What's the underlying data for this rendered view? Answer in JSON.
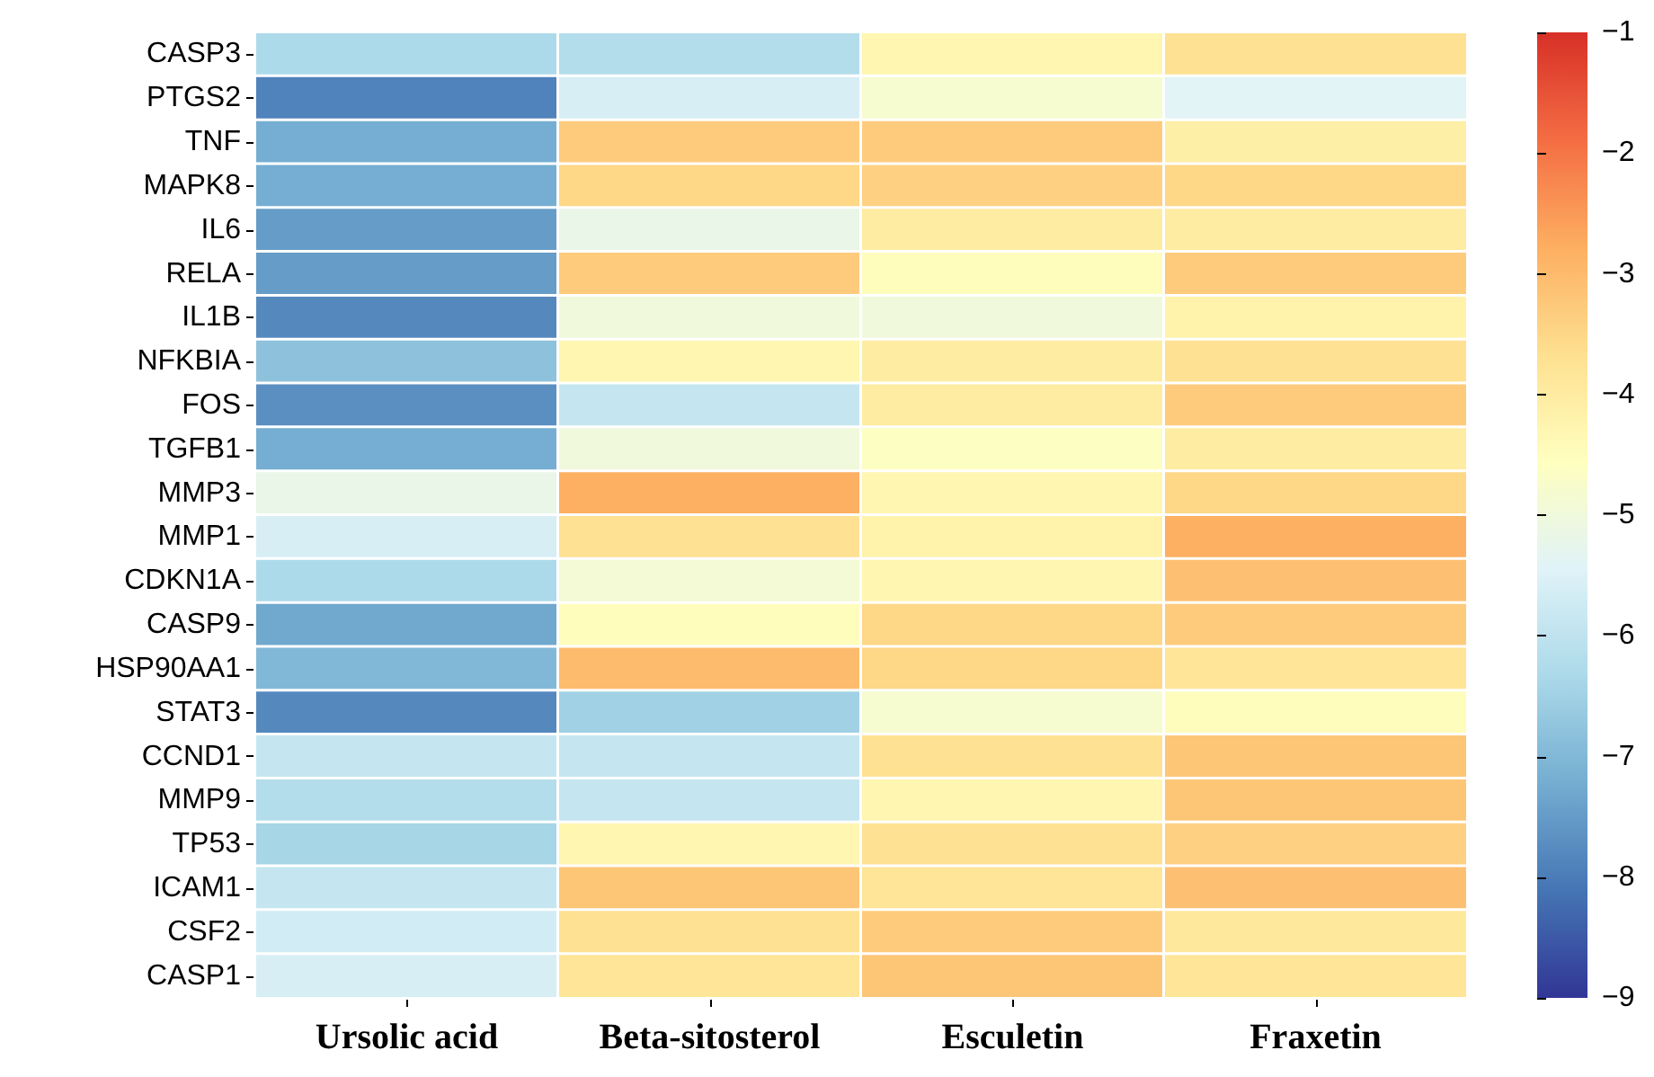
{
  "chart_data": {
    "type": "heatmap",
    "categories": [
      "Ursolic acid",
      "Beta-sitosterol",
      "Esculetin",
      "Fraxetin"
    ],
    "y_categories": [
      "CASP3",
      "PTGS2",
      "TNF",
      "MAPK8",
      "IL6",
      "RELA",
      "IL1B",
      "NFKBIA",
      "FOS",
      "TGFB1",
      "MMP3",
      "MMP1",
      "CDKN1A",
      "CASP9",
      "HSP90AA1",
      "STAT3",
      "CCND1",
      "MMP9",
      "TP53",
      "ICAM1",
      "CSF2",
      "CASP1"
    ],
    "cells": [
      [
        -6.3,
        -6.2,
        -4.3,
        -3.7
      ],
      [
        -7.9,
        -5.6,
        -4.8,
        -5.4
      ],
      [
        -7.2,
        -3.3,
        -3.3,
        -4.1
      ],
      [
        -7.2,
        -3.5,
        -3.4,
        -3.5
      ],
      [
        -7.5,
        -5.2,
        -4.0,
        -4.0
      ],
      [
        -7.5,
        -3.3,
        -4.5,
        -3.3
      ],
      [
        -7.8,
        -5.0,
        -5.0,
        -4.2
      ],
      [
        -6.8,
        -4.3,
        -4.0,
        -3.7
      ],
      [
        -7.7,
        -5.9,
        -4.0,
        -3.3
      ],
      [
        -7.2,
        -5.0,
        -4.6,
        -4.0
      ],
      [
        -5.2,
        -2.8,
        -4.3,
        -3.5
      ],
      [
        -5.6,
        -3.7,
        -4.2,
        -2.8
      ],
      [
        -6.3,
        -4.9,
        -4.3,
        -3.1
      ],
      [
        -7.3,
        -4.5,
        -3.5,
        -3.3
      ],
      [
        -7.0,
        -3.0,
        -3.5,
        -3.8
      ],
      [
        -7.8,
        -6.5,
        -4.8,
        -4.5
      ],
      [
        -5.9,
        -5.9,
        -3.7,
        -3.2
      ],
      [
        -6.2,
        -5.9,
        -4.3,
        -3.2
      ],
      [
        -6.4,
        -4.3,
        -3.7,
        -3.4
      ],
      [
        -5.9,
        -3.2,
        -3.8,
        -3.1
      ],
      [
        -5.7,
        -3.7,
        -3.3,
        -3.9
      ],
      [
        -5.6,
        -3.8,
        -3.2,
        -3.8
      ]
    ],
    "clim": [
      -9,
      -1
    ],
    "cticks": [
      -1,
      -2,
      -3,
      -4,
      -5,
      -6,
      -7,
      -8,
      -9
    ]
  }
}
